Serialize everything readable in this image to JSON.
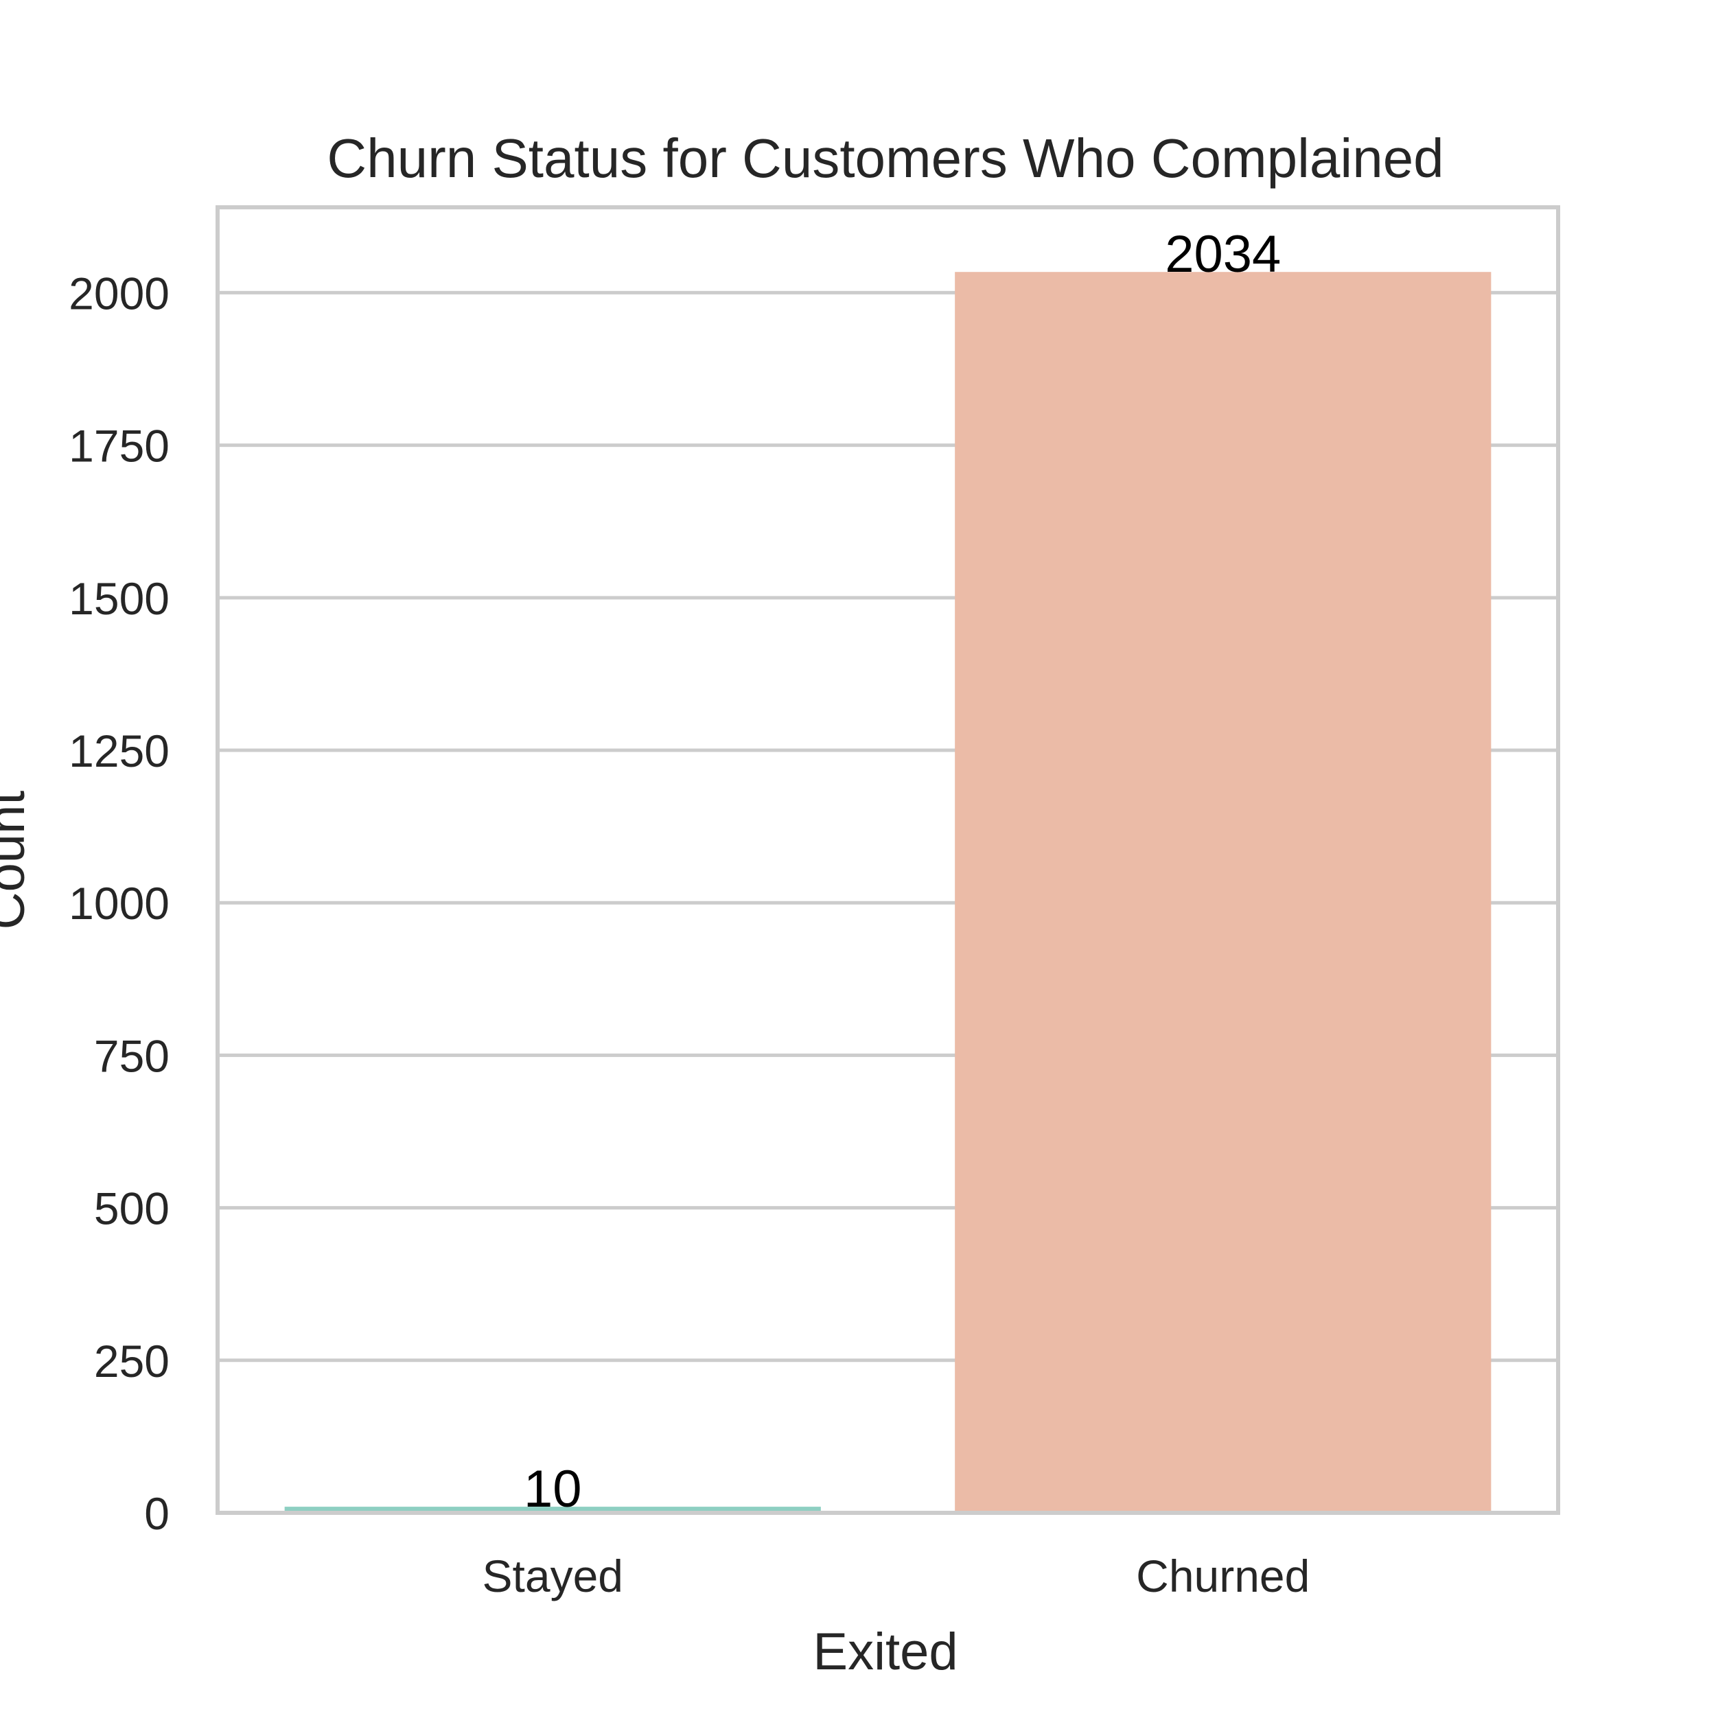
{
  "chart_data": {
    "type": "bar",
    "title": "Churn Status for Customers Who Complained",
    "xlabel": "Exited",
    "ylabel": "Count",
    "categories": [
      "Stayed",
      "Churned"
    ],
    "values": [
      10,
      2034
    ],
    "data_labels": [
      "10",
      "2034"
    ],
    "ylim": [
      0,
      2140
    ],
    "yticks": [
      0,
      250,
      500,
      750,
      1000,
      1250,
      1500,
      1750,
      2000
    ],
    "grid": true,
    "legend": "none",
    "colors": {
      "bars": [
        "#8ecfc2",
        "#ebbba7"
      ],
      "grid": "#cccccc",
      "frame": "#cccccc",
      "text": "#262626",
      "data_label": "#000000",
      "background": "#ffffff"
    }
  }
}
